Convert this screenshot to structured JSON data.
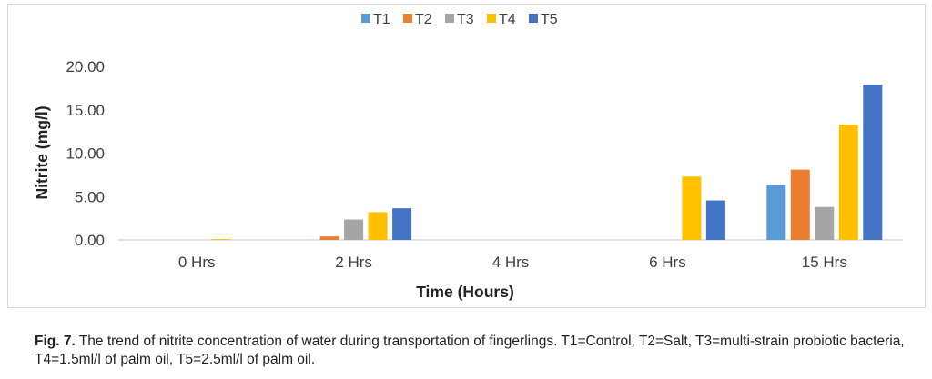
{
  "chart_data": {
    "type": "bar",
    "title": "",
    "xlabel": "Time (Hours)",
    "ylabel": "Nitrite (mg/l)",
    "ylim": [
      0,
      20
    ],
    "yticks": [
      "0.00",
      "5.00",
      "10.00",
      "15.00",
      "20.00"
    ],
    "categories": [
      "0 Hrs",
      "2 Hrs",
      "4 Hrs",
      "6 Hrs",
      "15 Hrs"
    ],
    "legend_position": "top",
    "series": [
      {
        "name": "T1",
        "color": "#5b9bd5",
        "values": [
          0,
          0,
          0,
          0,
          6.35
        ]
      },
      {
        "name": "T2",
        "color": "#ed7d31",
        "values": [
          0,
          0.4,
          0,
          0,
          8.1
        ]
      },
      {
        "name": "T3",
        "color": "#a5a5a5",
        "values": [
          0,
          2.35,
          0,
          0,
          3.8
        ]
      },
      {
        "name": "T4",
        "color": "#ffc000",
        "values": [
          0.1,
          3.2,
          0,
          7.3,
          13.3
        ]
      },
      {
        "name": "T5",
        "color": "#4472c4",
        "values": [
          0,
          3.65,
          0,
          4.55,
          17.9
        ]
      }
    ]
  },
  "caption": {
    "label": "Fig. 7.",
    "text": " The trend of nitrite concentration of water during transportation of fingerlings. T1=Control, T2=Salt, T3=multi-strain probiotic bacteria, T4=1.5ml/l of palm oil, T5=2.5ml/l of palm oil."
  }
}
